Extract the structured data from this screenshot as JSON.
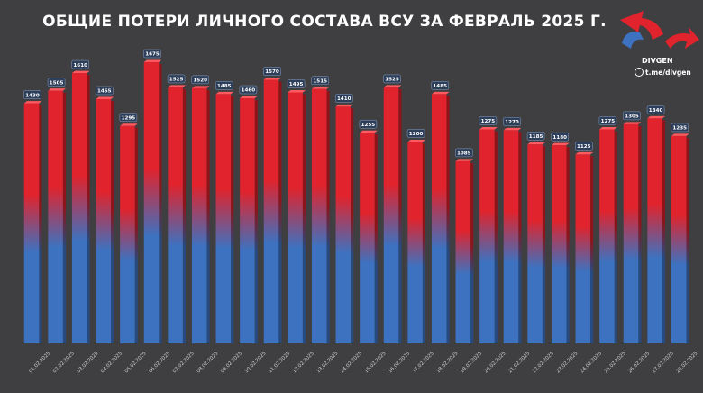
{
  "title": "ОБЩИЕ ПОТЕРИ ЛИЧНОГО СОСТАВА ВСУ ЗА ФЕВРАЛЬ 2025 Г.",
  "watermark": {
    "brand": "DIVGEN",
    "channel": "t.me/divgen"
  },
  "colors": {
    "background": "#3f3f42",
    "bar_top": "#e0232c",
    "bar_bottom": "#3d72c0",
    "label_bg": "#2c3e5a"
  },
  "chart_data": {
    "type": "bar",
    "categories": [
      "01.02.2025",
      "02.02.2025",
      "03.02.2025",
      "04.02.2025",
      "05.02.2025",
      "06.02.2025",
      "07.02.2025",
      "08.02.2025",
      "09.02.2025",
      "10.02.2025",
      "11.02.2025",
      "12.02.2025",
      "13.02.2025",
      "14.02.2025",
      "15.02.2025",
      "16.02.2025",
      "17.02.2025",
      "18.02.2025",
      "19.02.2025",
      "20.02.2025",
      "21.02.2025",
      "22.02.2025",
      "23.02.2025",
      "24.02.2025",
      "25.02.2025",
      "26.02.2025",
      "27.02.2025",
      "28.02.2025"
    ],
    "values": [
      1430,
      1505,
      1610,
      1455,
      1295,
      1675,
      1525,
      1520,
      1485,
      1460,
      1570,
      1495,
      1515,
      1410,
      1255,
      1525,
      1200,
      1485,
      1085,
      1275,
      1270,
      1185,
      1180,
      1125,
      1275,
      1305,
      1340,
      1235
    ],
    "ylim": [
      0,
      1750
    ],
    "grid": false,
    "legend": "none"
  }
}
